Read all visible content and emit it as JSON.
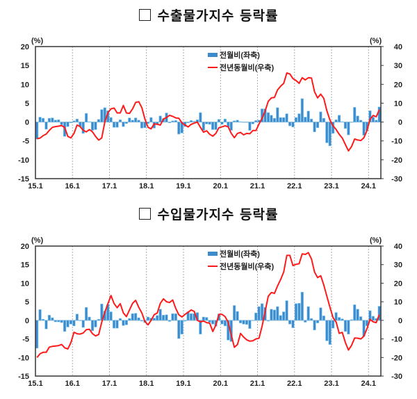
{
  "chart_data": [
    {
      "type": "bar+line",
      "title_box": "□",
      "title": "수출물가지수 등락률",
      "left_unit": "(%)",
      "right_unit": "(%)",
      "ylim_left": [
        -15,
        20
      ],
      "ylim_right": [
        -30,
        40
      ],
      "yticks_left": [
        "20",
        "15",
        "10",
        "5",
        "0",
        "-5",
        "-10",
        "-15"
      ],
      "yticks_right": [
        "40",
        "30",
        "20",
        "10",
        "0",
        "-10",
        "-20",
        "-30"
      ],
      "x_start": "15.1",
      "x_end": "24.4",
      "xticks": [
        "15.1",
        "16.1",
        "17.1",
        "18.1",
        "19.1",
        "20.1",
        "21.1",
        "22.1",
        "23.1",
        "24.1"
      ],
      "legend": "top-center",
      "series": [
        {
          "name": "전월비(좌축)",
          "type": "bar",
          "axis": "left",
          "color": "#3d8bcd",
          "values": [
            -4.5,
            1.3,
            1.0,
            -1.9,
            1.0,
            1.1,
            0.5,
            0.6,
            -0.7,
            -3.8,
            -1.2,
            -0.2,
            0.3,
            0.8,
            -1.2,
            -3.0,
            2.3,
            0.1,
            -2.2,
            -2.0,
            0.7,
            3.3,
            3.8,
            3.0,
            1.2,
            -1.4,
            -1.4,
            0.6,
            -1.2,
            -0.4,
            1.1,
            0.5,
            1.1,
            0.5,
            -1.6,
            -1.5,
            -0.4,
            1.2,
            -1.6,
            -0.6,
            1.6,
            0.9,
            2.4,
            -0.2,
            0.3,
            0.4,
            -3.2,
            -2.9,
            -1.2,
            -0.2,
            0.4,
            0.2,
            0.6,
            2.5,
            -2.2,
            -0.5,
            -0.6,
            -2.0,
            -2.0,
            0.7,
            -0.6,
            0.8,
            -1.3,
            -2.2,
            0.3,
            0.5,
            0.1,
            -0.1,
            -0.1,
            -2.2,
            -0.5,
            0.4,
            0.5,
            3.5,
            3.5,
            2.5,
            1.8,
            1.0,
            3.8,
            1.2,
            1.2,
            2.2,
            -1.0,
            -1.3,
            1.2,
            2.2,
            6.2,
            1.3,
            2.9,
            0.8,
            -2.6,
            -1.5,
            2.7,
            1.0,
            -5.5,
            -6.3,
            -3.0,
            0.6,
            1.8,
            0.1,
            -1.7,
            -3.4,
            0.0,
            3.9,
            1.6,
            0.5,
            -3.5,
            -2.3,
            3.0,
            1.3,
            0.5,
            4.0
          ]
        },
        {
          "name": "전년동월비(우축)",
          "type": "line",
          "axis": "right",
          "color": "#ff1a1a",
          "values": [
            -8.8,
            -8.5,
            -7.2,
            -6.4,
            -4.4,
            -2.8,
            -2.4,
            -2.2,
            -1.8,
            -3.0,
            -7.6,
            -8.4,
            -6.0,
            -1.6,
            -2.4,
            -4.4,
            -5.2,
            -4.0,
            -5.2,
            -7.6,
            -9.6,
            -8.4,
            0.0,
            5.0,
            7.0,
            7.4,
            4.8,
            4.8,
            8.8,
            4.8,
            4.6,
            7.0,
            10.4,
            10.8,
            7.6,
            1.6,
            -2.8,
            -3.6,
            -1.0,
            -1.2,
            -1.6,
            1.6,
            2.4,
            3.6,
            3.0,
            2.2,
            2.0,
            -0.4,
            -1.6,
            -2.6,
            -1.2,
            -0.6,
            0.0,
            -2.8,
            -5.4,
            -4.6,
            -6.5,
            -7.5,
            -6.0,
            -3.0,
            -2.5,
            -2.0,
            -2.5,
            -6.0,
            -8.3,
            -6.0,
            -5.5,
            -6.8,
            -6.0,
            -6.2,
            -4.5,
            -4.5,
            -1.0,
            2.0,
            6.0,
            11.0,
            12.8,
            13.0,
            17.0,
            19.0,
            20.5,
            26.0,
            25.5,
            23.0,
            22.0,
            20.5,
            23.5,
            22.3,
            23.5,
            23.3,
            16.0,
            12.8,
            14.8,
            12.5,
            6.0,
            1.0,
            -2.0,
            -4.0,
            -6.5,
            -8.5,
            -12.0,
            -15.3,
            -13.0,
            -9.0,
            -9.5,
            -9.8,
            -8.3,
            -4.5,
            1.5,
            3.5,
            2.8,
            6.5
          ]
        }
      ]
    },
    {
      "type": "bar+line",
      "title_box": "□",
      "title": "수입물가지수 등락률",
      "left_unit": "(%)",
      "right_unit": "(%)",
      "ylim_left": [
        -15,
        20
      ],
      "ylim_right": [
        -30,
        40
      ],
      "yticks_left": [
        "20",
        "15",
        "10",
        "5",
        "0",
        "-5",
        "-10",
        "-15"
      ],
      "yticks_right": [
        "40",
        "30",
        "20",
        "10",
        "0",
        "-10",
        "-20",
        "-30"
      ],
      "x_start": "15.1",
      "x_end": "24.4",
      "xticks": [
        "15.1",
        "16.1",
        "17.1",
        "18.1",
        "19.1",
        "20.1",
        "21.1",
        "22.1",
        "23.1",
        "24.1"
      ],
      "legend": "top-center",
      "series": [
        {
          "name": "전월비(좌축)",
          "type": "bar",
          "axis": "left",
          "color": "#3d8bcd",
          "values": [
            -7.5,
            2.9,
            0.3,
            -2.3,
            1.4,
            0.7,
            -0.4,
            -0.4,
            -0.6,
            -3.0,
            -1.8,
            -1.0,
            -1.5,
            1.7,
            0.0,
            -1.9,
            3.5,
            0.9,
            -2.8,
            -1.8,
            0.3,
            4.4,
            2.5,
            4.3,
            2.3,
            -2.1,
            -2.1,
            0.5,
            -1.4,
            -1.2,
            0.5,
            1.8,
            1.9,
            0.7,
            -0.2,
            -0.6,
            0.9,
            0.6,
            0.6,
            1.3,
            3.0,
            1.4,
            1.5,
            -0.3,
            1.8,
            1.8,
            -4.9,
            -3.7,
            -0.2,
            2.3,
            1.8,
            1.8,
            2.1,
            -3.7,
            0.9,
            0.8,
            -0.5,
            -1.0,
            -1.6,
            1.7,
            -1.0,
            -1.5,
            -5.3,
            -5.7,
            4.0,
            2.4,
            -0.7,
            -1.0,
            -1.1,
            -2.2,
            -0.1,
            2.0,
            3.7,
            4.5,
            3.5,
            -0.2,
            3.0,
            2.8,
            3.7,
            1.3,
            2.3,
            5.3,
            -1.0,
            -2.0,
            4.5,
            4.6,
            7.6,
            -0.5,
            3.7,
            0.5,
            -2.6,
            -0.7,
            3.4,
            1.2,
            -5.5,
            -6.5,
            -2.1,
            2.1,
            0.8,
            0.4,
            -3.0,
            -3.7,
            0.2,
            4.2,
            3.0,
            1.0,
            -4.3,
            -1.5,
            2.6,
            1.1,
            0.5,
            3.8
          ]
        },
        {
          "name": "전년동월비(우축)",
          "type": "line",
          "axis": "right",
          "color": "#ff1a1a",
          "values": [
            -20.0,
            -18.0,
            -17.2,
            -17.2,
            -14.4,
            -14.0,
            -13.8,
            -13.6,
            -13.0,
            -14.8,
            -15.4,
            -12.0,
            -6.4,
            -7.2,
            -7.4,
            -6.8,
            -5.0,
            -4.8,
            -7.2,
            -8.4,
            -7.6,
            -1.0,
            4.4,
            9.0,
            13.4,
            9.0,
            6.8,
            9.0,
            4.0,
            2.0,
            5.6,
            9.2,
            10.8,
            7.0,
            4.0,
            -0.6,
            -2.4,
            0.0,
            3.0,
            4.0,
            9.2,
            11.6,
            10.0,
            9.6,
            11.0,
            6.4,
            3.0,
            1.8,
            3.2,
            4.4,
            5.6,
            4.8,
            0.0,
            -0.8,
            -0.4,
            -1.2,
            -1.5,
            -6.0,
            -2.5,
            3.2,
            3.2,
            2.0,
            -1.0,
            -8.0,
            -14.5,
            -13.0,
            -7.0,
            -9.0,
            -10.5,
            -11.2,
            -11.0,
            -10.0,
            -9.6,
            -3.0,
            5.0,
            13.0,
            15.0,
            14.5,
            18.5,
            22.0,
            26.0,
            35.0,
            35.0,
            29.5,
            30.2,
            30.5,
            35.8,
            35.5,
            36.5,
            33.0,
            26.0,
            23.0,
            24.0,
            19.0,
            13.0,
            7.0,
            1.5,
            -1.0,
            -7.0,
            -6.5,
            -12.0,
            -16.0,
            -13.5,
            -9.5,
            -9.6,
            -10.0,
            -8.5,
            -4.5,
            0.5,
            -0.8,
            -1.2,
            3.0
          ]
        }
      ]
    }
  ]
}
